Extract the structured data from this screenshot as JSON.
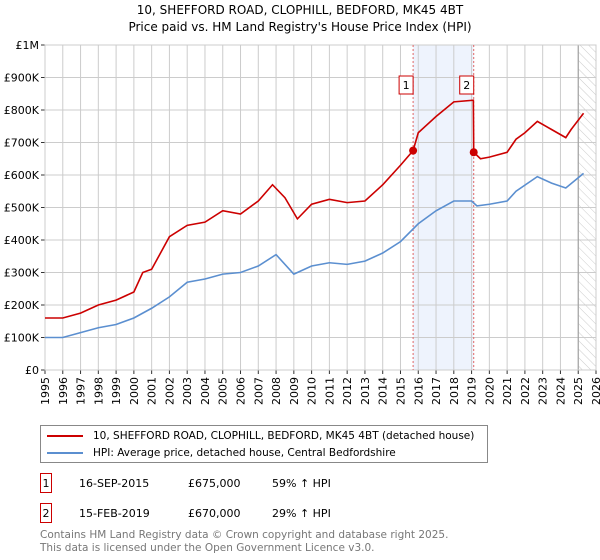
{
  "chart_data": {
    "type": "line",
    "title": "10, SHEFFORD ROAD, CLOPHILL, BEDFORD, MK45 4BT",
    "subtitle": "Price paid vs. HM Land Registry's House Price Index (HPI)",
    "xlim": [
      1995,
      2026
    ],
    "ylim": [
      0,
      1000000
    ],
    "x_ticks": [
      "1995",
      "1996",
      "1997",
      "1998",
      "1999",
      "2000",
      "2001",
      "2002",
      "2003",
      "2004",
      "2005",
      "2006",
      "2007",
      "2008",
      "2009",
      "2010",
      "2011",
      "2012",
      "2013",
      "2014",
      "2015",
      "2016",
      "2017",
      "2018",
      "2019",
      "2020",
      "2021",
      "2022",
      "2023",
      "2024",
      "2025",
      "2026"
    ],
    "y_ticks": [
      {
        "v": 0,
        "label": "£0"
      },
      {
        "v": 100000,
        "label": "£100K"
      },
      {
        "v": 200000,
        "label": "£200K"
      },
      {
        "v": 300000,
        "label": "£300K"
      },
      {
        "v": 400000,
        "label": "£400K"
      },
      {
        "v": 500000,
        "label": "£500K"
      },
      {
        "v": 600000,
        "label": "£600K"
      },
      {
        "v": 700000,
        "label": "£700K"
      },
      {
        "v": 800000,
        "label": "£800K"
      },
      {
        "v": 900000,
        "label": "£900K"
      },
      {
        "v": 1000000,
        "label": "£1M"
      }
    ],
    "grid": true,
    "shaded_range": [
      2015.71,
      2019.12
    ],
    "future_hatch_from": 2025.0,
    "series": [
      {
        "name": "10, SHEFFORD ROAD, CLOPHILL, BEDFORD, MK45 4BT (detached house)",
        "color": "#cc0000",
        "x": [
          1995,
          1996,
          1997,
          1998,
          1999,
          2000,
          2000.5,
          2001,
          2002,
          2003,
          2004,
          2005,
          2006,
          2007,
          2007.8,
          2008.5,
          2009.2,
          2010,
          2011,
          2012,
          2013,
          2014,
          2015,
          2015.71,
          2016,
          2017,
          2018,
          2019.1,
          2019.12,
          2019.5,
          2020,
          2021,
          2021.5,
          2022,
          2022.7,
          2023.5,
          2024.3,
          2024.6,
          2025.3
        ],
        "y": [
          160000,
          160000,
          175000,
          200000,
          215000,
          240000,
          300000,
          310000,
          410000,
          445000,
          455000,
          490000,
          480000,
          520000,
          570000,
          530000,
          465000,
          510000,
          525000,
          515000,
          520000,
          570000,
          630000,
          675000,
          730000,
          780000,
          825000,
          830000,
          670000,
          650000,
          655000,
          670000,
          710000,
          730000,
          765000,
          740000,
          715000,
          740000,
          790000
        ]
      },
      {
        "name": "HPI: Average price, detached house, Central Bedfordshire",
        "color": "#5b8fd0",
        "x": [
          1995,
          1996,
          1997,
          1998,
          1999,
          2000,
          2001,
          2002,
          2003,
          2004,
          2005,
          2006,
          2007,
          2008,
          2009,
          2010,
          2011,
          2012,
          2013,
          2014,
          2015,
          2016,
          2017,
          2018,
          2019,
          2019.3,
          2020,
          2021,
          2021.5,
          2022.7,
          2023.5,
          2024.3,
          2025.3
        ],
        "y": [
          100000,
          100000,
          115000,
          130000,
          140000,
          160000,
          190000,
          225000,
          270000,
          280000,
          295000,
          300000,
          320000,
          355000,
          295000,
          320000,
          330000,
          325000,
          335000,
          360000,
          395000,
          450000,
          490000,
          520000,
          520000,
          505000,
          510000,
          520000,
          550000,
          595000,
          575000,
          560000,
          605000
        ]
      }
    ],
    "annotations": [
      {
        "label": "1",
        "x": 2015.71,
        "y": 675000
      },
      {
        "label": "2",
        "x": 2019.12,
        "y": 670000
      }
    ]
  },
  "transactions": [
    {
      "num": "1",
      "date": "16-SEP-2015",
      "price": "£675,000",
      "hpi": "59% ↑ HPI"
    },
    {
      "num": "2",
      "date": "15-FEB-2019",
      "price": "£670,000",
      "hpi": "29% ↑ HPI"
    }
  ],
  "footer": {
    "line1": "Contains HM Land Registry data © Crown copyright and database right 2025.",
    "line2": "This data is licensed under the Open Government Licence v3.0."
  }
}
